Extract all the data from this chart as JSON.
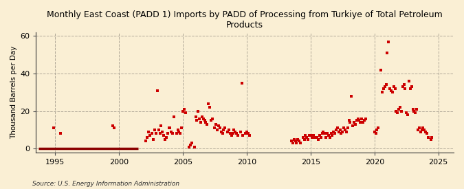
{
  "title": "Monthly East Coast (PADD 1) Imports by PADD of Processing from Turkiye of Total Petroleum\nProducts",
  "ylabel": "Thousand Barrels per Day",
  "source": "Source: U.S. Energy Information Administration",
  "background_color": "#faefd4",
  "marker_color": "#cc0000",
  "line_color": "#8b0000",
  "xlim": [
    1993.5,
    2026.2
  ],
  "ylim": [
    -2,
    62
  ],
  "yticks": [
    0,
    20,
    40,
    60
  ],
  "xticks": [
    1995,
    2000,
    2005,
    2010,
    2015,
    2020,
    2025
  ],
  "zero_line_start": 1993.7,
  "zero_line_end": 2001.5,
  "data_points": [
    [
      1994.9,
      11
    ],
    [
      1995.4,
      8
    ],
    [
      1999.5,
      12
    ],
    [
      1999.6,
      11
    ],
    [
      2002.1,
      4
    ],
    [
      2002.2,
      6
    ],
    [
      2002.3,
      9
    ],
    [
      2002.4,
      7
    ],
    [
      2002.6,
      8
    ],
    [
      2002.7,
      5
    ],
    [
      2002.8,
      10
    ],
    [
      2002.9,
      8
    ],
    [
      2003.0,
      31
    ],
    [
      2003.1,
      10
    ],
    [
      2003.2,
      8
    ],
    [
      2003.3,
      12
    ],
    [
      2003.4,
      9
    ],
    [
      2003.5,
      7
    ],
    [
      2003.6,
      5
    ],
    [
      2003.7,
      6
    ],
    [
      2003.8,
      8
    ],
    [
      2003.9,
      11
    ],
    [
      2004.0,
      11
    ],
    [
      2004.1,
      9
    ],
    [
      2004.2,
      8
    ],
    [
      2004.3,
      17
    ],
    [
      2004.5,
      8
    ],
    [
      2004.6,
      10
    ],
    [
      2004.7,
      9
    ],
    [
      2004.8,
      8
    ],
    [
      2004.9,
      11
    ],
    [
      2005.0,
      20
    ],
    [
      2005.1,
      21
    ],
    [
      2005.2,
      19
    ],
    [
      2005.5,
      1
    ],
    [
      2005.6,
      2
    ],
    [
      2005.7,
      3
    ],
    [
      2005.9,
      1
    ],
    [
      2006.0,
      17
    ],
    [
      2006.1,
      15
    ],
    [
      2006.2,
      20
    ],
    [
      2006.3,
      16
    ],
    [
      2006.4,
      14
    ],
    [
      2006.5,
      17
    ],
    [
      2006.6,
      16
    ],
    [
      2006.7,
      15
    ],
    [
      2006.8,
      14
    ],
    [
      2006.9,
      13
    ],
    [
      2007.0,
      24
    ],
    [
      2007.1,
      22
    ],
    [
      2007.2,
      15
    ],
    [
      2007.3,
      16
    ],
    [
      2007.5,
      11
    ],
    [
      2007.6,
      13
    ],
    [
      2007.7,
      10
    ],
    [
      2007.8,
      12
    ],
    [
      2007.9,
      11
    ],
    [
      2008.0,
      9
    ],
    [
      2008.1,
      8
    ],
    [
      2008.2,
      10
    ],
    [
      2008.3,
      11
    ],
    [
      2008.5,
      9
    ],
    [
      2008.6,
      10
    ],
    [
      2008.7,
      8
    ],
    [
      2008.8,
      7
    ],
    [
      2008.9,
      8
    ],
    [
      2009.0,
      10
    ],
    [
      2009.1,
      9
    ],
    [
      2009.2,
      8
    ],
    [
      2009.3,
      7
    ],
    [
      2009.5,
      9
    ],
    [
      2009.6,
      35
    ],
    [
      2009.7,
      7
    ],
    [
      2009.9,
      8
    ],
    [
      2010.0,
      9
    ],
    [
      2010.1,
      8
    ],
    [
      2010.2,
      7
    ],
    [
      2013.5,
      4
    ],
    [
      2013.6,
      3
    ],
    [
      2013.7,
      5
    ],
    [
      2013.8,
      4
    ],
    [
      2013.9,
      3
    ],
    [
      2014.0,
      5
    ],
    [
      2014.1,
      4
    ],
    [
      2014.2,
      3
    ],
    [
      2014.4,
      6
    ],
    [
      2014.5,
      5
    ],
    [
      2014.6,
      7
    ],
    [
      2014.7,
      6
    ],
    [
      2014.8,
      5
    ],
    [
      2014.9,
      7
    ],
    [
      2015.0,
      7
    ],
    [
      2015.1,
      6
    ],
    [
      2015.2,
      7
    ],
    [
      2015.3,
      6
    ],
    [
      2015.5,
      6
    ],
    [
      2015.6,
      5
    ],
    [
      2015.7,
      7
    ],
    [
      2015.8,
      6
    ],
    [
      2015.9,
      8
    ],
    [
      2016.0,
      9
    ],
    [
      2016.1,
      8
    ],
    [
      2016.2,
      6
    ],
    [
      2016.3,
      8
    ],
    [
      2016.4,
      7
    ],
    [
      2016.5,
      6
    ],
    [
      2016.6,
      8
    ],
    [
      2016.7,
      7
    ],
    [
      2016.8,
      9
    ],
    [
      2016.9,
      8
    ],
    [
      2017.0,
      10
    ],
    [
      2017.1,
      11
    ],
    [
      2017.2,
      9
    ],
    [
      2017.3,
      10
    ],
    [
      2017.4,
      8
    ],
    [
      2017.5,
      9
    ],
    [
      2017.6,
      11
    ],
    [
      2017.7,
      10
    ],
    [
      2017.8,
      9
    ],
    [
      2017.9,
      11
    ],
    [
      2018.0,
      15
    ],
    [
      2018.1,
      14
    ],
    [
      2018.2,
      28
    ],
    [
      2018.3,
      12
    ],
    [
      2018.4,
      14
    ],
    [
      2018.5,
      13
    ],
    [
      2018.6,
      15
    ],
    [
      2018.7,
      16
    ],
    [
      2018.8,
      15
    ],
    [
      2018.9,
      14
    ],
    [
      2019.0,
      16
    ],
    [
      2019.1,
      14
    ],
    [
      2019.2,
      15
    ],
    [
      2019.3,
      16
    ],
    [
      2020.0,
      9
    ],
    [
      2020.1,
      8
    ],
    [
      2020.2,
      10
    ],
    [
      2020.3,
      11
    ],
    [
      2020.5,
      42
    ],
    [
      2020.6,
      30
    ],
    [
      2020.7,
      32
    ],
    [
      2020.8,
      33
    ],
    [
      2020.9,
      34
    ],
    [
      2021.0,
      51
    ],
    [
      2021.1,
      57
    ],
    [
      2021.2,
      32
    ],
    [
      2021.3,
      31
    ],
    [
      2021.4,
      30
    ],
    [
      2021.5,
      33
    ],
    [
      2021.6,
      32
    ],
    [
      2021.7,
      20
    ],
    [
      2021.8,
      19
    ],
    [
      2021.9,
      21
    ],
    [
      2022.0,
      22
    ],
    [
      2022.1,
      20
    ],
    [
      2022.2,
      33
    ],
    [
      2022.3,
      34
    ],
    [
      2022.4,
      32
    ],
    [
      2022.5,
      19
    ],
    [
      2022.6,
      18
    ],
    [
      2022.7,
      36
    ],
    [
      2022.8,
      32
    ],
    [
      2022.9,
      33
    ],
    [
      2023.0,
      21
    ],
    [
      2023.1,
      20
    ],
    [
      2023.2,
      19
    ],
    [
      2023.3,
      21
    ],
    [
      2023.4,
      10
    ],
    [
      2023.5,
      11
    ],
    [
      2023.6,
      9
    ],
    [
      2023.7,
      10
    ],
    [
      2023.8,
      11
    ],
    [
      2023.9,
      10
    ],
    [
      2024.0,
      9
    ],
    [
      2024.1,
      8
    ],
    [
      2024.2,
      6
    ],
    [
      2024.4,
      5
    ],
    [
      2024.5,
      6
    ]
  ]
}
